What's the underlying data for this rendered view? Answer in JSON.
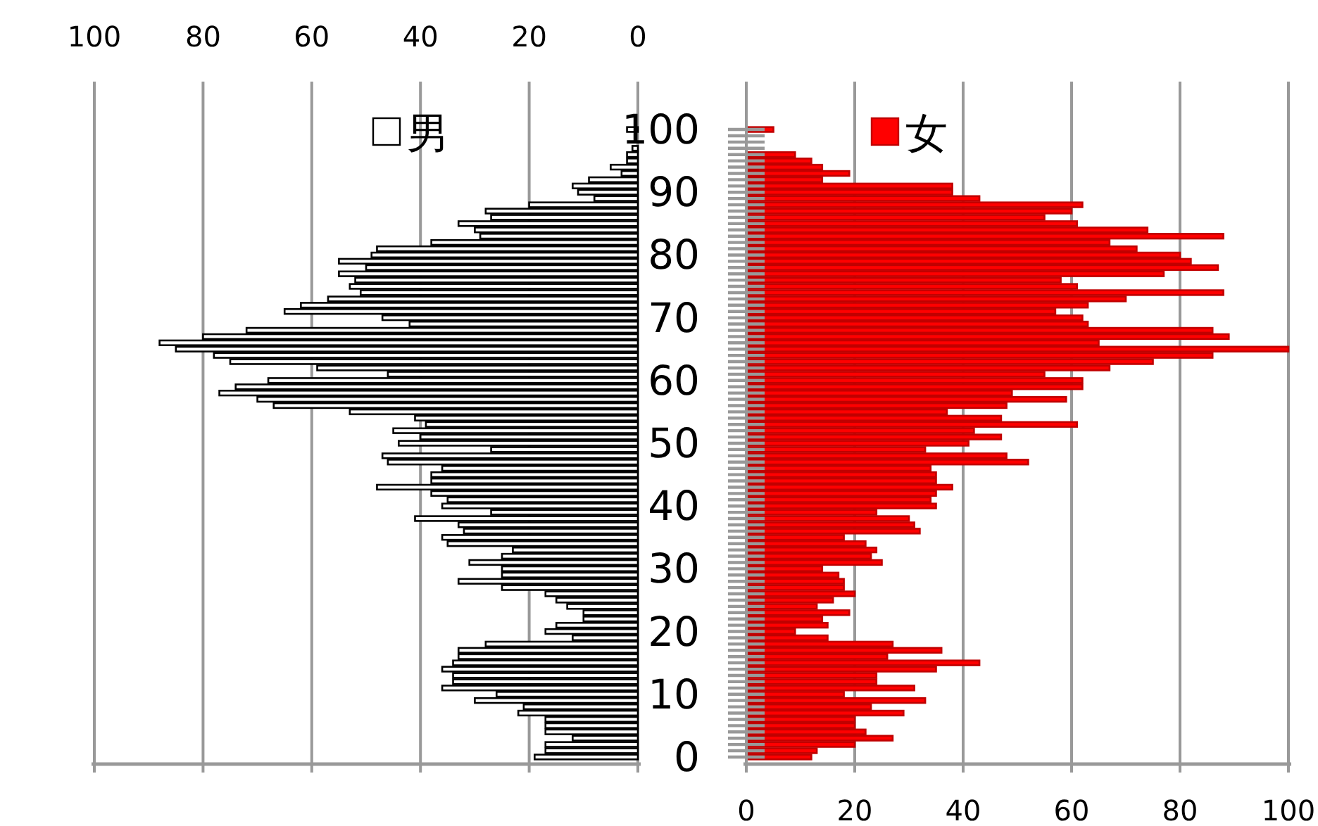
{
  "chart_data": [
    {
      "type": "bar",
      "orientation": "horizontal",
      "legend": "top",
      "grid": "x",
      "xlim": [
        100,
        0
      ],
      "xticks": [
        100,
        80,
        60,
        40,
        20,
        0
      ],
      "categories": [
        "100",
        null,
        null,
        null,
        null,
        null,
        null,
        null,
        null,
        null,
        "90",
        null,
        null,
        null,
        null,
        null,
        null,
        null,
        null,
        null,
        "80",
        null,
        null,
        null,
        null,
        null,
        null,
        null,
        null,
        null,
        "70",
        null,
        null,
        null,
        null,
        null,
        null,
        null,
        null,
        null,
        "60",
        null,
        null,
        null,
        null,
        null,
        null,
        null,
        null,
        null,
        "50",
        null,
        null,
        null,
        null,
        null,
        null,
        null,
        null,
        null,
        "40",
        null,
        null,
        null,
        null,
        null,
        null,
        null,
        null,
        null,
        "30",
        null,
        null,
        null,
        null,
        null,
        null,
        null,
        null,
        null,
        "20",
        null,
        null,
        null,
        null,
        null,
        null,
        null,
        null,
        null,
        "10",
        null,
        null,
        null,
        null,
        null,
        null,
        null,
        null,
        null,
        "0"
      ],
      "series": [
        {
          "name": "男",
          "color": "#ffffff",
          "values": [
            2,
            null,
            null,
            1,
            2,
            2,
            5,
            3,
            9,
            12,
            11,
            8,
            20,
            28,
            27,
            33,
            30,
            29,
            38,
            48,
            49,
            55,
            50,
            55,
            52,
            53,
            51,
            57,
            62,
            65,
            47,
            42,
            72,
            80,
            88,
            85,
            78,
            75,
            59,
            46,
            68,
            74,
            77,
            70,
            67,
            53,
            41,
            39,
            45,
            40,
            44,
            27,
            47,
            46,
            36,
            38,
            38,
            48,
            38,
            35,
            36,
            27,
            41,
            33,
            32,
            36,
            35,
            23,
            25,
            31,
            25,
            25,
            33,
            25,
            17,
            15,
            13,
            10,
            10,
            15,
            17,
            12,
            28,
            33,
            33,
            34,
            36,
            34,
            34,
            36,
            26,
            30,
            21,
            22,
            17,
            17,
            17,
            12,
            17,
            17,
            19
          ]
        }
      ]
    },
    {
      "type": "bar",
      "orientation": "horizontal",
      "legend": "top",
      "grid": "x",
      "tick_labels": "x",
      "xlim": [
        0,
        100
      ],
      "xticks": [
        0,
        20,
        40,
        60,
        80,
        100
      ],
      "categories": [
        null,
        null,
        null,
        null,
        null,
        null,
        null,
        null,
        null,
        null,
        null,
        null,
        null,
        null,
        null,
        null,
        null,
        null,
        null,
        null,
        null,
        null,
        null,
        null,
        null,
        null,
        null,
        null,
        null,
        null,
        null,
        null,
        null,
        null,
        null,
        null,
        null,
        null,
        null,
        null,
        null,
        null,
        null,
        null,
        null,
        null,
        null,
        null,
        null,
        null,
        null,
        null,
        null,
        null,
        null,
        null,
        null,
        null,
        null,
        null,
        null,
        null,
        null,
        null,
        null,
        null,
        null,
        null,
        null,
        null,
        null,
        null,
        null,
        null,
        null,
        null,
        null,
        null,
        null,
        null,
        null,
        null,
        null,
        null,
        null,
        null,
        null,
        null,
        null,
        null,
        null,
        null,
        null,
        null,
        null,
        null,
        null,
        null,
        null,
        null,
        null
      ],
      "series": [
        {
          "name": "女",
          "color": "#ff0000",
          "values": [
            5,
            null,
            null,
            null,
            9,
            12,
            14,
            19,
            14,
            38,
            38,
            43,
            62,
            60,
            55,
            61,
            74,
            88,
            67,
            72,
            80,
            82,
            87,
            77,
            58,
            61,
            88,
            70,
            63,
            57,
            62,
            63,
            86,
            89,
            65,
            100,
            86,
            75,
            67,
            55,
            62,
            62,
            49,
            59,
            48,
            37,
            47,
            61,
            42,
            47,
            41,
            33,
            48,
            52,
            34,
            35,
            35,
            38,
            35,
            34,
            35,
            24,
            30,
            31,
            32,
            18,
            22,
            24,
            23,
            25,
            14,
            17,
            18,
            18,
            20,
            16,
            13,
            19,
            14,
            15,
            9,
            15,
            27,
            36,
            26,
            43,
            35,
            24,
            24,
            31,
            18,
            33,
            23,
            29,
            20,
            20,
            22,
            27,
            20,
            13,
            12
          ]
        }
      ]
    }
  ]
}
